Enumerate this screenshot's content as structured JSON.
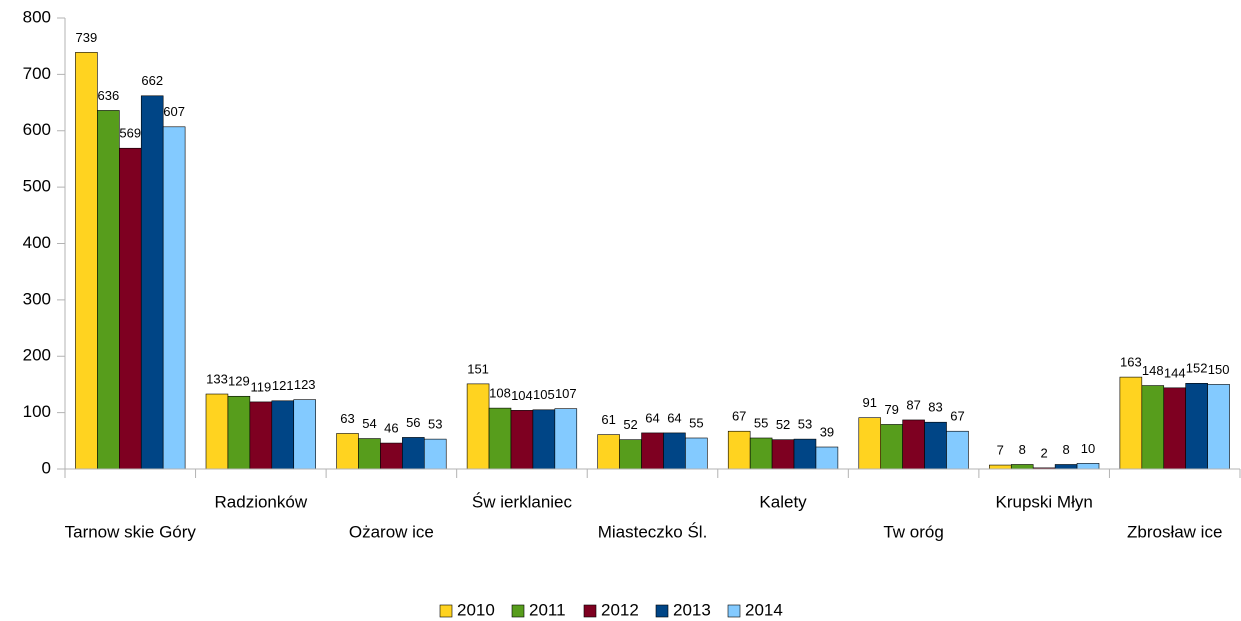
{
  "chart_data": {
    "type": "bar",
    "categories": [
      "Tarnow skie Góry",
      "Radzionków",
      "Ożarow ice",
      "Św ierklaniec",
      "Miasteczko Śl.",
      "Kalety",
      "Tw oróg",
      "Krupski Młyn",
      "Zbrosław ice"
    ],
    "series": [
      {
        "name": "2010",
        "color": "#ffd320",
        "values": [
          739,
          133,
          63,
          151,
          61,
          67,
          91,
          7,
          163
        ]
      },
      {
        "name": "2011",
        "color": "#579d1c",
        "values": [
          636,
          129,
          54,
          108,
          52,
          55,
          79,
          8,
          148
        ]
      },
      {
        "name": "2012",
        "color": "#7e0021",
        "values": [
          569,
          119,
          46,
          104,
          64,
          52,
          87,
          2,
          144
        ]
      },
      {
        "name": "2013",
        "color": "#004586",
        "values": [
          662,
          121,
          56,
          105,
          64,
          53,
          83,
          8,
          152
        ]
      },
      {
        "name": "2014",
        "color": "#83caff",
        "values": [
          607,
          123,
          53,
          107,
          55,
          39,
          67,
          10,
          150
        ]
      }
    ],
    "ylim": [
      0,
      800
    ],
    "yticks": [
      0,
      100,
      200,
      300,
      400,
      500,
      600,
      700,
      800
    ],
    "legend": "bottom"
  }
}
